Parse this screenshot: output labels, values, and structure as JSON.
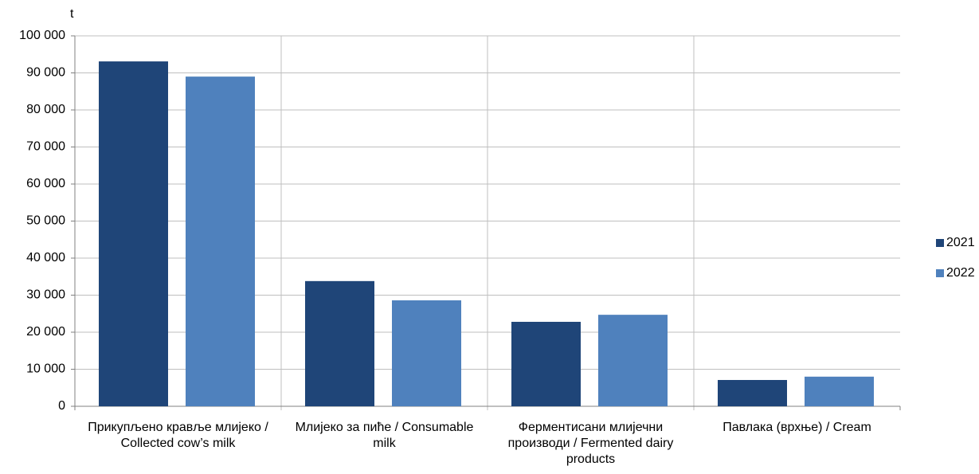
{
  "chart_data": {
    "type": "bar",
    "y_label": "t",
    "categories": [
      "Прикупљено крављe млијеко / Collected cow’s milk",
      "Млијеко за пиће / Consumable milk",
      "Ферментисани млијечни производи / Fermented dairy products",
      "Павлака (врхње) / Cream"
    ],
    "series": [
      {
        "name": "2021",
        "color": "#1f4578",
        "values": [
          93100,
          33800,
          22800,
          7100
        ]
      },
      {
        "name": "2022",
        "color": "#4f81bd",
        "values": [
          89000,
          28600,
          24700,
          8000
        ]
      }
    ],
    "ylim": [
      0,
      100000
    ],
    "yticks": [
      0,
      {
        "value": 10000,
        "label": "10 000"
      },
      {
        "value": 20000,
        "label": "20 000"
      },
      {
        "value": 30000,
        "label": "30 000"
      },
      {
        "value": 40000,
        "label": "40 000"
      },
      {
        "value": 50000,
        "label": "50 000"
      },
      {
        "value": 60000,
        "label": "60 000"
      },
      {
        "value": 70000,
        "label": "70 000"
      },
      {
        "value": 80000,
        "label": "80 000"
      },
      {
        "value": 90000,
        "label": "90 000"
      },
      {
        "value": 100000,
        "label": "100 000"
      }
    ],
    "grid": true,
    "legend": "right"
  }
}
